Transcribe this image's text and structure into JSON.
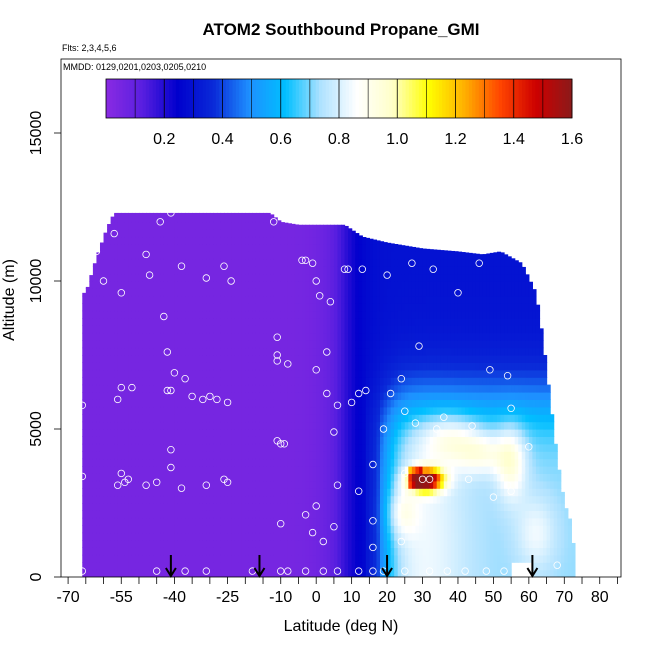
{
  "chart_data": {
    "type": "heatmap",
    "title": "ATOM2 Southbound Propane_GMI",
    "annotations": [
      "Flts: 2,3,4,5,6",
      "MMDD: 0129,0201,0203,0205,0210"
    ],
    "xlabel": "Latitude (deg N)",
    "ylabel": "Altitude (m)",
    "xlim": [
      -72,
      86
    ],
    "ylim": [
      0,
      17500
    ],
    "x_ticks": [
      -70,
      -65,
      -60,
      -55,
      -50,
      -45,
      -40,
      -35,
      -30,
      -25,
      -20,
      -15,
      -10,
      -5,
      0,
      5,
      10,
      15,
      20,
      25,
      30,
      35,
      40,
      45,
      50,
      55,
      60,
      65,
      70,
      75,
      80,
      85
    ],
    "x_tick_labels": [
      "-70",
      "-55",
      "-40",
      "-25",
      "-10",
      "0",
      "10",
      "20",
      "30",
      "40",
      "50",
      "60",
      "70",
      "80"
    ],
    "x_tick_label_values": [
      -70,
      -55,
      -40,
      -25,
      -10,
      0,
      10,
      20,
      30,
      40,
      50,
      60,
      70,
      80
    ],
    "y_ticks": [
      0,
      5000,
      10000,
      15000
    ],
    "y_tick_labels": [
      "0",
      "5000",
      "10000",
      "15000"
    ],
    "colorbar": {
      "range": [
        0,
        1.6
      ],
      "tick_values": [
        0.2,
        0.4,
        0.6,
        0.8,
        1.0,
        1.2,
        1.4,
        1.6
      ],
      "tick_labels": [
        "0.2",
        "0.4",
        "0.6",
        "0.8",
        "1.0",
        "1.2",
        "1.4",
        "1.6"
      ],
      "colors": [
        "#8a2be2",
        "#5a1fe0",
        "#0000cd",
        "#0a2ad8",
        "#1e90ff",
        "#00bfff",
        "#b0e2ff",
        "#ffffff",
        "#ffffc8",
        "#ffff00",
        "#ffb000",
        "#ff4500",
        "#cd0000",
        "#8b1a1a"
      ]
    },
    "coverage": {
      "top_alt_by_lat": [
        [
          -65,
          9600
        ],
        [
          -62,
          10800
        ],
        [
          -59,
          11800
        ],
        [
          -57,
          12300
        ],
        [
          -55,
          12300
        ],
        [
          -45,
          12300
        ],
        [
          -35,
          12300
        ],
        [
          -20,
          12300
        ],
        [
          -13,
          12300
        ],
        [
          -10,
          12000
        ],
        [
          -5,
          11900
        ],
        [
          -2,
          11900
        ],
        [
          2,
          11900
        ],
        [
          8,
          11900
        ],
        [
          13,
          11500
        ],
        [
          20,
          11300
        ],
        [
          30,
          11100
        ],
        [
          40,
          11000
        ],
        [
          47,
          10900
        ],
        [
          52,
          11000
        ],
        [
          58,
          10600
        ],
        [
          62,
          9600
        ],
        [
          64,
          8000
        ],
        [
          66,
          6000
        ],
        [
          68,
          4000
        ],
        [
          70,
          2500
        ],
        [
          72,
          1800
        ],
        [
          73,
          500
        ]
      ],
      "lat_range": [
        -66,
        73
      ]
    },
    "features": [
      {
        "type": "plume",
        "lat": [
          26,
          36
        ],
        "alt": [
          2900,
          3900
        ],
        "peak": 1.55
      },
      {
        "type": "enhanced",
        "lat": [
          52,
          58
        ],
        "alt": [
          2500,
          4600
        ],
        "peak": 0.95
      }
    ],
    "arrows_lat": [
      -41,
      -16,
      20,
      61
    ],
    "observations": [
      {
        "lat": -41,
        "alt": 12300
      },
      {
        "lat": -44,
        "alt": 12000
      },
      {
        "lat": -57,
        "alt": 11600
      },
      {
        "lat": -62,
        "alt": 11000
      },
      {
        "lat": -48,
        "alt": 10900
      },
      {
        "lat": -38,
        "alt": 10500
      },
      {
        "lat": -26,
        "alt": 10500
      },
      {
        "lat": -60,
        "alt": 10000
      },
      {
        "lat": -47,
        "alt": 10200
      },
      {
        "lat": -31,
        "alt": 10100
      },
      {
        "lat": -24,
        "alt": 10000
      },
      {
        "lat": -12,
        "alt": 12000
      },
      {
        "lat": -55,
        "alt": 9600
      },
      {
        "lat": -11,
        "alt": 8100
      },
      {
        "lat": -11,
        "alt": 7500
      },
      {
        "lat": -11,
        "alt": 7300
      },
      {
        "lat": -8,
        "alt": 7200
      },
      {
        "lat": -43,
        "alt": 8800
      },
      {
        "lat": -42,
        "alt": 7600
      },
      {
        "lat": -40,
        "alt": 6900
      },
      {
        "lat": -37,
        "alt": 6700
      },
      {
        "lat": -35,
        "alt": 6100
      },
      {
        "lat": -32,
        "alt": 6000
      },
      {
        "lat": -30,
        "alt": 6100
      },
      {
        "lat": -28,
        "alt": 6000
      },
      {
        "lat": -25,
        "alt": 5900
      },
      {
        "lat": -42,
        "alt": 6300
      },
      {
        "lat": -41,
        "alt": 6300
      },
      {
        "lat": -66,
        "alt": 5800
      },
      {
        "lat": -56,
        "alt": 6000
      },
      {
        "lat": -55,
        "alt": 6400
      },
      {
        "lat": -52,
        "alt": 6400
      },
      {
        "lat": -11,
        "alt": 4600
      },
      {
        "lat": -10,
        "alt": 4500
      },
      {
        "lat": -9,
        "alt": 4500
      },
      {
        "lat": -41,
        "alt": 4300
      },
      {
        "lat": -41,
        "alt": 3700
      },
      {
        "lat": -55,
        "alt": 3500
      },
      {
        "lat": -56,
        "alt": 3100
      },
      {
        "lat": -54,
        "alt": 3200
      },
      {
        "lat": -53,
        "alt": 3300
      },
      {
        "lat": -48,
        "alt": 3100
      },
      {
        "lat": -45,
        "alt": 3200
      },
      {
        "lat": -38,
        "alt": 3000
      },
      {
        "lat": -31,
        "alt": 3100
      },
      {
        "lat": -26,
        "alt": 3300
      },
      {
        "lat": -25,
        "alt": 3200
      },
      {
        "lat": -66,
        "alt": 3400
      },
      {
        "lat": -4,
        "alt": 10700
      },
      {
        "lat": -3,
        "alt": 10700
      },
      {
        "lat": -1,
        "alt": 10600
      },
      {
        "lat": 0,
        "alt": 10000
      },
      {
        "lat": 1,
        "alt": 9500
      },
      {
        "lat": 4,
        "alt": 9300
      },
      {
        "lat": 8,
        "alt": 10400
      },
      {
        "lat": 9,
        "alt": 10400
      },
      {
        "lat": 13,
        "alt": 10400
      },
      {
        "lat": 20,
        "alt": 10200
      },
      {
        "lat": 27,
        "alt": 10600
      },
      {
        "lat": 33,
        "alt": 10400
      },
      {
        "lat": 46,
        "alt": 10600
      },
      {
        "lat": 40,
        "alt": 9600
      },
      {
        "lat": 29,
        "alt": 7800
      },
      {
        "lat": 0,
        "alt": 7000
      },
      {
        "lat": 3,
        "alt": 7600
      },
      {
        "lat": 6,
        "alt": 5800
      },
      {
        "lat": 10,
        "alt": 5900
      },
      {
        "lat": 12,
        "alt": 6200
      },
      {
        "lat": 14,
        "alt": 6300
      },
      {
        "lat": 21,
        "alt": 6200
      },
      {
        "lat": 24,
        "alt": 6700
      },
      {
        "lat": 3,
        "alt": 6200
      },
      {
        "lat": 5,
        "alt": 4900
      },
      {
        "lat": 19,
        "alt": 5000
      },
      {
        "lat": 25,
        "alt": 5600
      },
      {
        "lat": 28,
        "alt": 5200
      },
      {
        "lat": 34,
        "alt": 5000
      },
      {
        "lat": 36,
        "alt": 5400
      },
      {
        "lat": 44,
        "alt": 5100
      },
      {
        "lat": 49,
        "alt": 7000
      },
      {
        "lat": 54,
        "alt": 6800
      },
      {
        "lat": 55,
        "alt": 5700
      },
      {
        "lat": 60,
        "alt": 4400
      },
      {
        "lat": 16,
        "alt": 3800
      },
      {
        "lat": 25,
        "alt": 3500
      },
      {
        "lat": 30,
        "alt": 3300
      },
      {
        "lat": 32,
        "alt": 3300
      },
      {
        "lat": 43,
        "alt": 3300
      },
      {
        "lat": 54,
        "alt": 3100
      },
      {
        "lat": 55,
        "alt": 2900
      },
      {
        "lat": 50,
        "alt": 2700
      },
      {
        "lat": 6,
        "alt": 3100
      },
      {
        "lat": 12,
        "alt": 2900
      },
      {
        "lat": 16,
        "alt": 1900
      },
      {
        "lat": 0,
        "alt": 2400
      },
      {
        "lat": -3,
        "alt": 2100
      },
      {
        "lat": -1,
        "alt": 1500
      },
      {
        "lat": -10,
        "alt": 1800
      },
      {
        "lat": 5,
        "alt": 1700
      },
      {
        "lat": 2,
        "alt": 1200
      },
      {
        "lat": 24,
        "alt": 1200
      },
      {
        "lat": 16,
        "alt": 1000
      },
      {
        "lat": -66,
        "alt": 200
      },
      {
        "lat": -45,
        "alt": 200
      },
      {
        "lat": -37,
        "alt": 200
      },
      {
        "lat": -31,
        "alt": 200
      },
      {
        "lat": -18,
        "alt": 200
      },
      {
        "lat": -10,
        "alt": 200
      },
      {
        "lat": -8,
        "alt": 200
      },
      {
        "lat": -3,
        "alt": 200
      },
      {
        "lat": 2,
        "alt": 200
      },
      {
        "lat": 6,
        "alt": 200
      },
      {
        "lat": 12,
        "alt": 200
      },
      {
        "lat": 16,
        "alt": 200
      },
      {
        "lat": 19,
        "alt": 200
      },
      {
        "lat": 25,
        "alt": 200
      },
      {
        "lat": 32,
        "alt": 200
      },
      {
        "lat": 37,
        "alt": 200
      },
      {
        "lat": 42,
        "alt": 200
      },
      {
        "lat": 48,
        "alt": 200
      },
      {
        "lat": 53,
        "alt": 200
      },
      {
        "lat": 68,
        "alt": 400
      }
    ],
    "grid": false,
    "legend": "colorbar-top"
  }
}
